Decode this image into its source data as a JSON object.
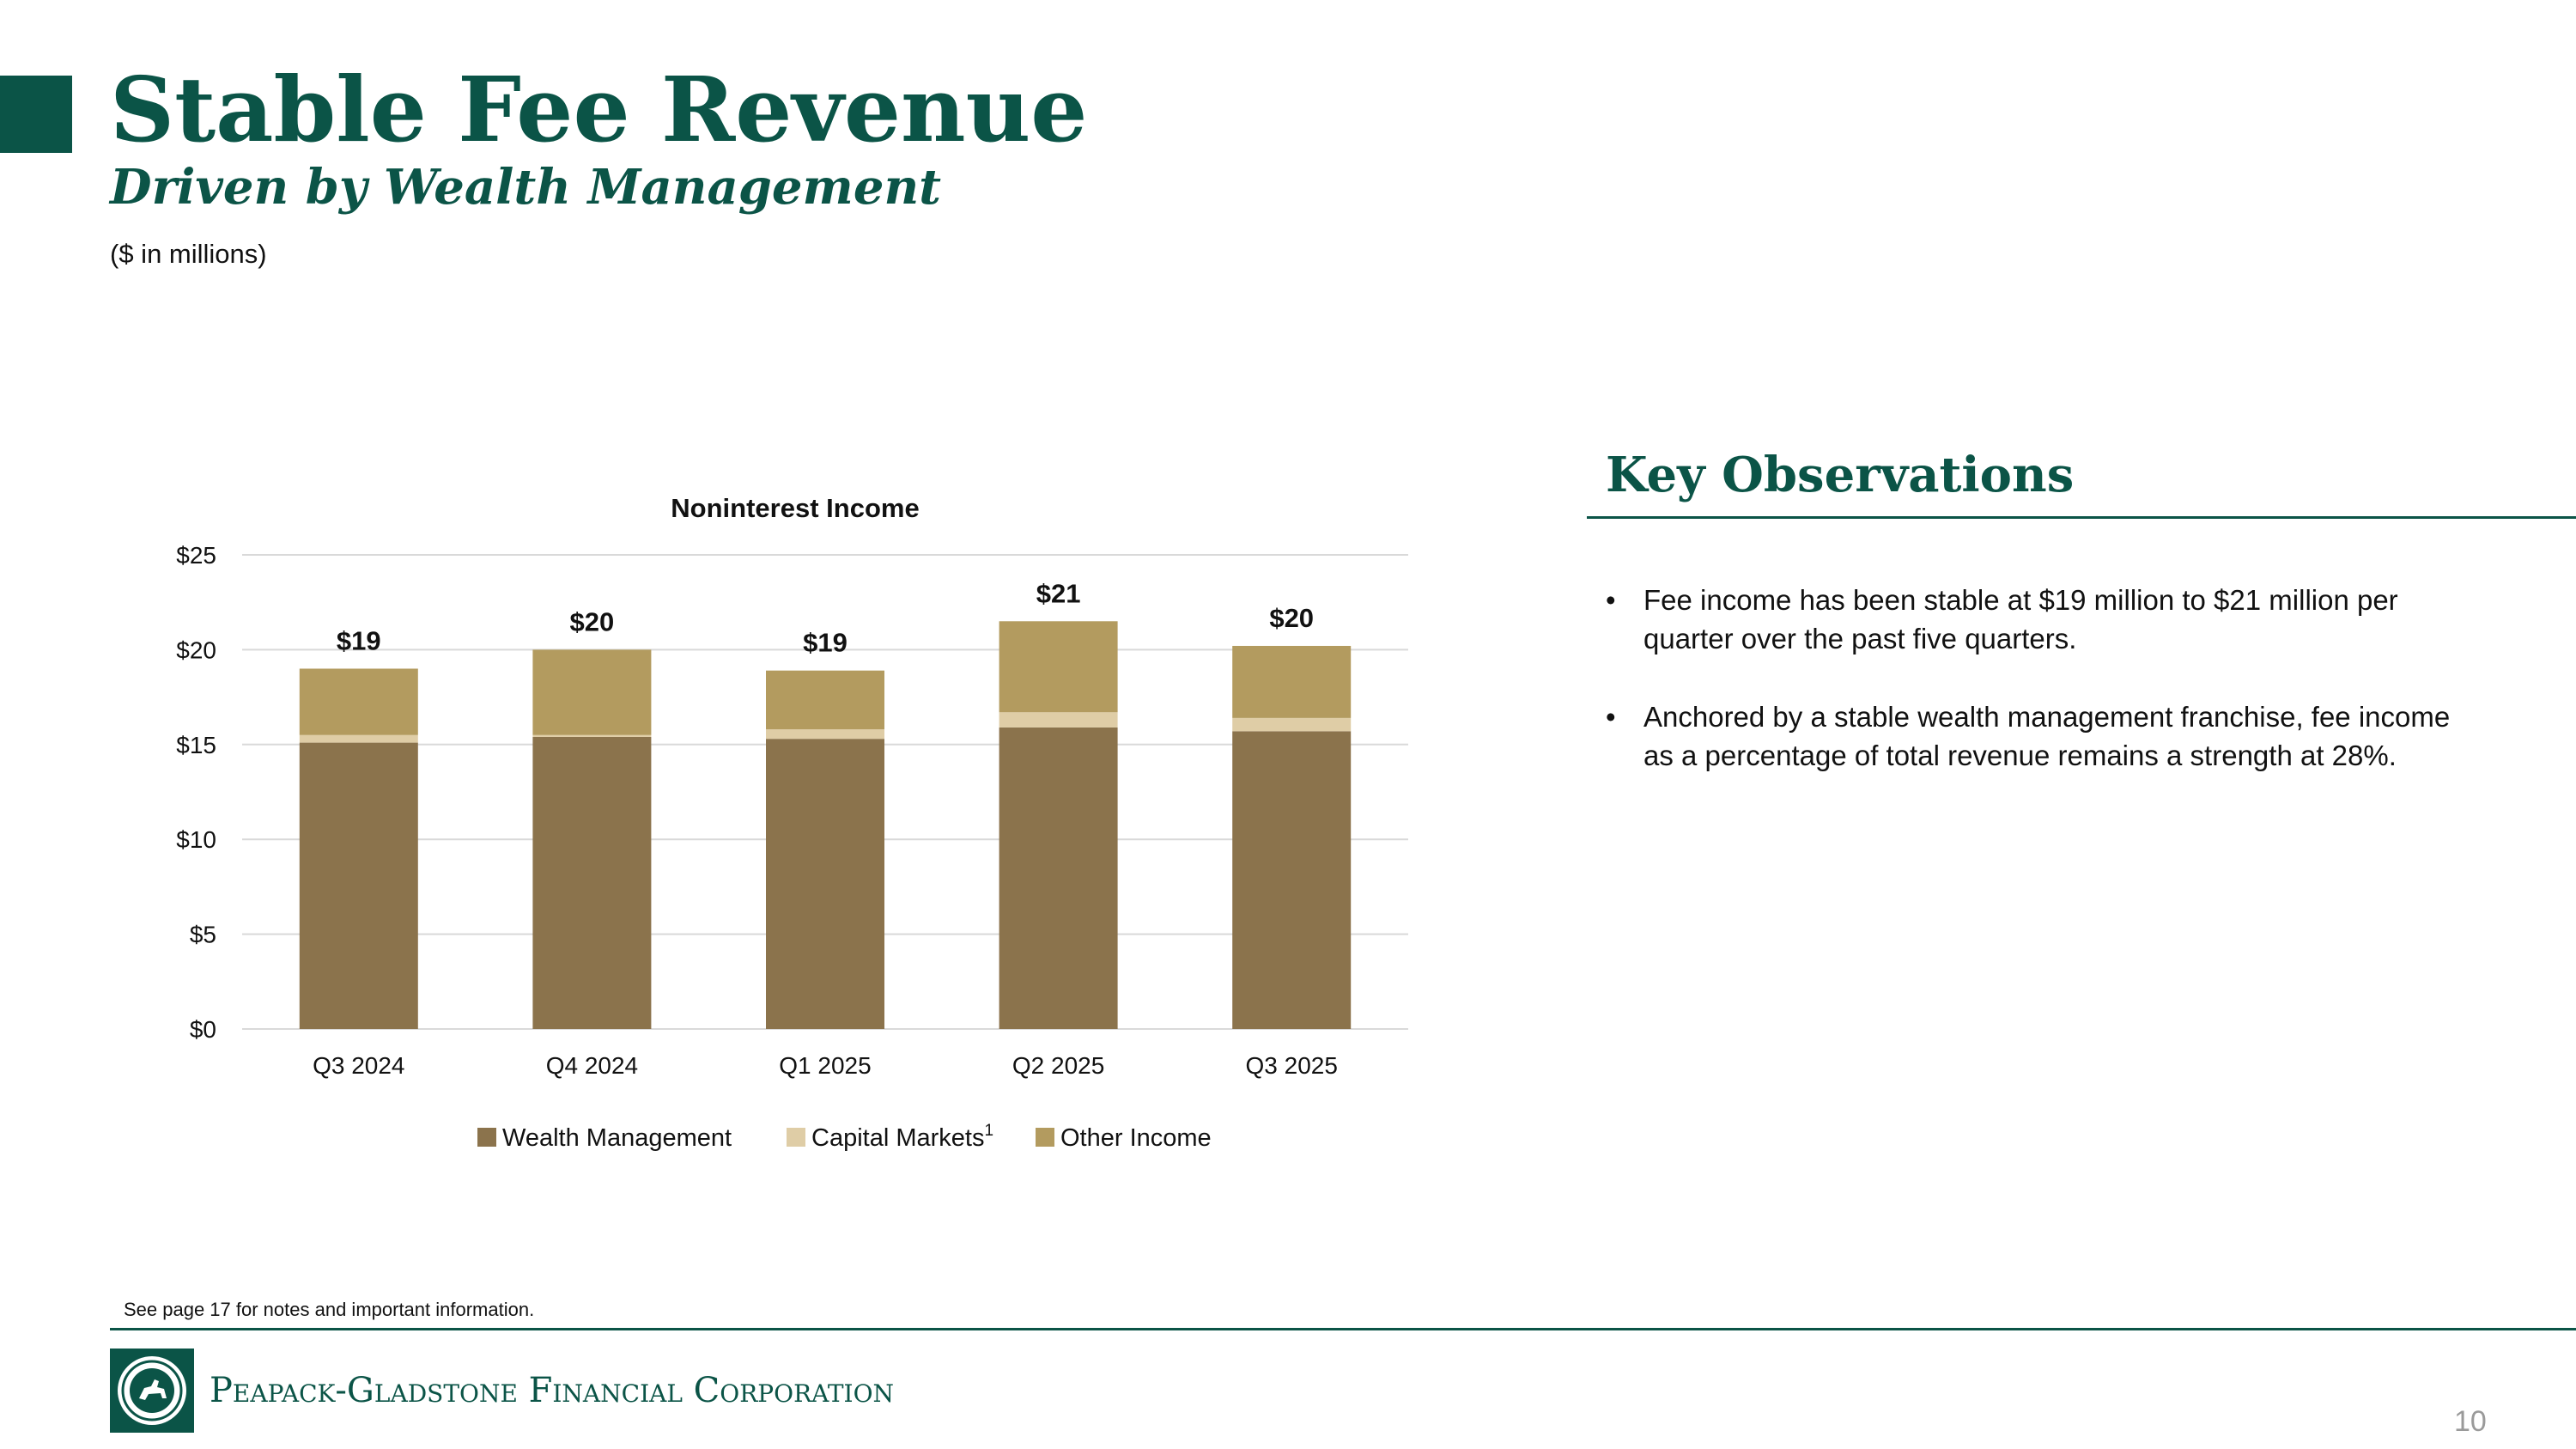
{
  "header": {
    "title": "Stable Fee Revenue",
    "subtitle": "Driven by Wealth Management",
    "units": "($ in millions)"
  },
  "colors": {
    "brand_green": "#0b5447",
    "wealth_management": "#8b734c",
    "capital_markets": "#dfcda6",
    "other_income": "#b39b5f",
    "grid": "#d9d9d9"
  },
  "chart_data": {
    "type": "bar",
    "stacked": true,
    "title": "Noninterest Income",
    "categories": [
      "Q3 2024",
      "Q4 2024",
      "Q1 2025",
      "Q2 2025",
      "Q3 2025"
    ],
    "series": [
      {
        "name": "Wealth Management",
        "values": [
          15.1,
          15.4,
          15.3,
          15.9,
          15.7
        ]
      },
      {
        "name": "Capital Markets",
        "values": [
          0.4,
          0.1,
          0.5,
          0.8,
          0.7
        ]
      },
      {
        "name": "Other Income",
        "values": [
          3.5,
          4.5,
          3.1,
          4.8,
          3.8
        ]
      }
    ],
    "total_labels": [
      "$19",
      "$20",
      "$19",
      "$21",
      "$20"
    ],
    "ylim": [
      0,
      25
    ],
    "yticks": [
      0,
      5,
      10,
      15,
      20,
      25
    ],
    "ytick_labels": [
      "$0",
      "$5",
      "$10",
      "$15",
      "$20",
      "$25"
    ],
    "grid": true,
    "legend_position": "bottom",
    "legend_footnote_marker": "1"
  },
  "observations": {
    "heading": "Key Observations",
    "items": [
      "Fee income has been stable at $19 million to $21 million per quarter over the past five quarters.",
      "Anchored by a stable wealth management franchise, fee income as a percentage of total revenue remains a strength at 28%."
    ],
    "bullet": "•"
  },
  "footer": {
    "note": "See page 17 for notes and important information.",
    "company": "Peapack-Gladstone Financial Corporation",
    "logo_icon": "horse-rider-seal-icon",
    "page_number": "10"
  }
}
